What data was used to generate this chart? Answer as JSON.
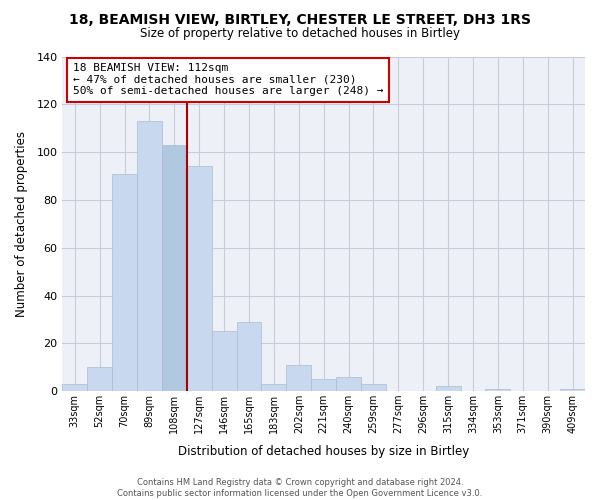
{
  "title": "18, BEAMISH VIEW, BIRTLEY, CHESTER LE STREET, DH3 1RS",
  "subtitle": "Size of property relative to detached houses in Birtley",
  "xlabel": "Distribution of detached houses by size in Birtley",
  "ylabel": "Number of detached properties",
  "bin_labels": [
    "33sqm",
    "52sqm",
    "70sqm",
    "89sqm",
    "108sqm",
    "127sqm",
    "146sqm",
    "165sqm",
    "183sqm",
    "202sqm",
    "221sqm",
    "240sqm",
    "259sqm",
    "277sqm",
    "296sqm",
    "315sqm",
    "334sqm",
    "353sqm",
    "371sqm",
    "390sqm",
    "409sqm"
  ],
  "bar_values": [
    3,
    10,
    91,
    113,
    103,
    94,
    25,
    29,
    3,
    11,
    5,
    6,
    3,
    0,
    0,
    2,
    0,
    1,
    0,
    0,
    1
  ],
  "bar_color_normal": "#c8d8ee",
  "bar_color_highlight": "#b0c8e0",
  "highlight_index": 4,
  "vline_color": "#aa0000",
  "ylim": [
    0,
    140
  ],
  "yticks": [
    0,
    20,
    40,
    60,
    80,
    100,
    120,
    140
  ],
  "annotation_title": "18 BEAMISH VIEW: 112sqm",
  "annotation_line1": "← 47% of detached houses are smaller (230)",
  "annotation_line2": "50% of semi-detached houses are larger (248) →",
  "annotation_box_color": "#ffffff",
  "annotation_box_edge": "#cc0000",
  "plot_bg_color": "#eef0f8",
  "grid_color": "#c8ccd8",
  "footer_line1": "Contains HM Land Registry data © Crown copyright and database right 2024.",
  "footer_line2": "Contains public sector information licensed under the Open Government Licence v3.0."
}
